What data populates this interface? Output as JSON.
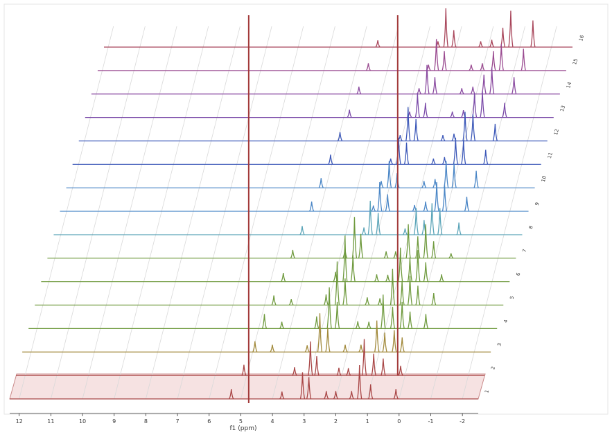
{
  "chart_data": {
    "type": "line",
    "title": "",
    "xlabel": "f1 (ppm)",
    "ylabel": "",
    "x_axis_reversed": true,
    "xlim": [
      12.3,
      -2.5
    ],
    "x_ticks": [
      "12",
      "11",
      "10",
      "9",
      "8",
      "7",
      "6",
      "5",
      "4",
      "3",
      "2",
      "1",
      "0",
      "-1",
      "-2"
    ],
    "x_tick_values": [
      12,
      11,
      10,
      9,
      8,
      7,
      6,
      5,
      4,
      3,
      2,
      1,
      0,
      -1,
      -2
    ],
    "grid": true,
    "legend": "none",
    "perspective": "stacked-3d",
    "reference_line_ppm": 4.75,
    "highlighted_trace": "1",
    "series": [
      {
        "name": "1",
        "color": "#a84545",
        "peaks": [
          {
            "ppm": 5.3,
            "height": 0.2
          },
          {
            "ppm": 3.7,
            "height": 0.15
          },
          {
            "ppm": 3.05,
            "height": 0.55
          },
          {
            "ppm": 2.85,
            "height": 0.45
          },
          {
            "ppm": 2.3,
            "height": 0.16
          },
          {
            "ppm": 2.0,
            "height": 0.16
          },
          {
            "ppm": 1.5,
            "height": 0.16
          },
          {
            "ppm": 1.25,
            "height": 0.7
          },
          {
            "ppm": 0.9,
            "height": 0.3
          },
          {
            "ppm": 0.1,
            "height": 0.2
          }
        ]
      },
      {
        "name": "2",
        "color": "#a84545",
        "peaks": [
          {
            "ppm": 5.1,
            "height": 0.22
          },
          {
            "ppm": 3.5,
            "height": 0.17
          },
          {
            "ppm": 3.0,
            "height": 0.7
          },
          {
            "ppm": 2.8,
            "height": 0.4
          },
          {
            "ppm": 2.1,
            "height": 0.16
          },
          {
            "ppm": 1.8,
            "height": 0.15
          },
          {
            "ppm": 1.3,
            "height": 0.75
          },
          {
            "ppm": 1.0,
            "height": 0.45
          },
          {
            "ppm": 0.7,
            "height": 0.35
          },
          {
            "ppm": 0.15,
            "height": 0.2
          }
        ]
      },
      {
        "name": "3",
        "color": "#a28a3c",
        "peaks": [
          {
            "ppm": 4.95,
            "height": 0.22
          },
          {
            "ppm": 4.4,
            "height": 0.15
          },
          {
            "ppm": 3.3,
            "height": 0.14
          },
          {
            "ppm": 2.9,
            "height": 0.8
          },
          {
            "ppm": 2.65,
            "height": 0.5
          },
          {
            "ppm": 2.1,
            "height": 0.15
          },
          {
            "ppm": 1.6,
            "height": 0.15
          },
          {
            "ppm": 1.1,
            "height": 0.65
          },
          {
            "ppm": 0.85,
            "height": 0.4
          },
          {
            "ppm": 0.55,
            "height": 0.45
          },
          {
            "ppm": 0.3,
            "height": 0.3
          }
        ]
      },
      {
        "name": "4",
        "color": "#6f9a3e",
        "peaks": [
          {
            "ppm": 4.85,
            "height": 0.3
          },
          {
            "ppm": 4.3,
            "height": 0.14
          },
          {
            "ppm": 3.2,
            "height": 0.25
          },
          {
            "ppm": 2.8,
            "height": 0.85
          },
          {
            "ppm": 2.55,
            "height": 0.55
          },
          {
            "ppm": 1.9,
            "height": 0.15
          },
          {
            "ppm": 1.55,
            "height": 0.14
          },
          {
            "ppm": 1.1,
            "height": 0.7
          },
          {
            "ppm": 0.8,
            "height": 0.45
          },
          {
            "ppm": 0.5,
            "height": 0.55
          },
          {
            "ppm": 0.25,
            "height": 0.35
          },
          {
            "ppm": -0.25,
            "height": 0.3
          }
        ]
      },
      {
        "name": "5",
        "color": "#6f9a3e",
        "peaks": [
          {
            "ppm": 4.75,
            "height": 0.2
          },
          {
            "ppm": 4.2,
            "height": 0.12
          },
          {
            "ppm": 3.1,
            "height": 0.22
          },
          {
            "ppm": 2.75,
            "height": 0.9
          },
          {
            "ppm": 2.5,
            "height": 0.55
          },
          {
            "ppm": 1.8,
            "height": 0.16
          },
          {
            "ppm": 1.4,
            "height": 0.14
          },
          {
            "ppm": 1.0,
            "height": 0.75
          },
          {
            "ppm": 0.7,
            "height": 0.5
          },
          {
            "ppm": 0.45,
            "height": 0.6
          },
          {
            "ppm": 0.2,
            "height": 0.4
          },
          {
            "ppm": -0.3,
            "height": 0.25
          }
        ]
      },
      {
        "name": "6",
        "color": "#6f9a3e",
        "peaks": [
          {
            "ppm": 4.65,
            "height": 0.18
          },
          {
            "ppm": 3.0,
            "height": 0.2
          },
          {
            "ppm": 2.7,
            "height": 0.95
          },
          {
            "ppm": 2.45,
            "height": 0.55
          },
          {
            "ppm": 1.7,
            "height": 0.15
          },
          {
            "ppm": 1.35,
            "height": 0.14
          },
          {
            "ppm": 0.95,
            "height": 0.7
          },
          {
            "ppm": 0.65,
            "height": 0.5
          },
          {
            "ppm": 0.4,
            "height": 0.65
          },
          {
            "ppm": 0.15,
            "height": 0.4
          },
          {
            "ppm": -0.35,
            "height": 0.15
          }
        ]
      },
      {
        "name": "7",
        "color": "#6f9a3e",
        "peaks": [
          {
            "ppm": 4.55,
            "height": 0.17
          },
          {
            "ppm": 2.9,
            "height": 0.2
          },
          {
            "ppm": 2.6,
            "height": 0.85
          },
          {
            "ppm": 2.4,
            "height": 0.5
          },
          {
            "ppm": 1.6,
            "height": 0.14
          },
          {
            "ppm": 1.3,
            "height": 0.14
          },
          {
            "ppm": 0.9,
            "height": 0.7
          },
          {
            "ppm": 0.6,
            "height": 0.45
          },
          {
            "ppm": 0.35,
            "height": 0.7
          },
          {
            "ppm": 0.1,
            "height": 0.35
          },
          {
            "ppm": -0.45,
            "height": 0.1
          }
        ]
      },
      {
        "name": "8",
        "color": "#5aa4b8",
        "peaks": [
          {
            "ppm": 4.45,
            "height": 0.18
          },
          {
            "ppm": 2.5,
            "height": 0.15
          },
          {
            "ppm": 2.3,
            "height": 0.7
          },
          {
            "ppm": 2.05,
            "height": 0.45
          },
          {
            "ppm": 1.2,
            "height": 0.13
          },
          {
            "ppm": 0.85,
            "height": 0.55
          },
          {
            "ppm": 0.6,
            "height": 0.3
          },
          {
            "ppm": 0.35,
            "height": 0.65
          },
          {
            "ppm": 0.1,
            "height": 0.55
          },
          {
            "ppm": -0.5,
            "height": 0.25
          }
        ]
      },
      {
        "name": "9",
        "color": "#4a86c6",
        "peaks": [
          {
            "ppm": 4.35,
            "height": 0.2
          },
          {
            "ppm": 2.4,
            "height": 0.12
          },
          {
            "ppm": 2.2,
            "height": 0.6
          },
          {
            "ppm": 1.95,
            "height": 0.35
          },
          {
            "ppm": 1.1,
            "height": 0.13
          },
          {
            "ppm": 0.75,
            "height": 0.2
          },
          {
            "ppm": 0.4,
            "height": 0.6
          },
          {
            "ppm": 0.15,
            "height": 0.55
          },
          {
            "ppm": -0.55,
            "height": 0.3
          }
        ]
      },
      {
        "name": "10",
        "color": "#4a86c6",
        "peaks": [
          {
            "ppm": 4.25,
            "height": 0.2
          },
          {
            "ppm": 2.35,
            "height": 0.14
          },
          {
            "ppm": 2.1,
            "height": 0.55
          },
          {
            "ppm": 1.85,
            "height": 0.3
          },
          {
            "ppm": 1.0,
            "height": 0.14
          },
          {
            "ppm": 0.65,
            "height": 0.18
          },
          {
            "ppm": 0.3,
            "height": 0.55
          },
          {
            "ppm": 0.05,
            "height": 0.5
          },
          {
            "ppm": -0.65,
            "height": 0.35
          }
        ]
      },
      {
        "name": "11",
        "color": "#3c58b8",
        "peaks": [
          {
            "ppm": 4.15,
            "height": 0.2
          },
          {
            "ppm": 2.25,
            "height": 0.12
          },
          {
            "ppm": 2.0,
            "height": 0.55
          },
          {
            "ppm": 1.75,
            "height": 0.45
          },
          {
            "ppm": 0.9,
            "height": 0.12
          },
          {
            "ppm": 0.55,
            "height": 0.15
          },
          {
            "ppm": 0.2,
            "height": 0.55
          },
          {
            "ppm": -0.05,
            "height": 0.5
          },
          {
            "ppm": -0.75,
            "height": 0.3
          }
        ]
      },
      {
        "name": "12",
        "color": "#3c58b8",
        "peaks": [
          {
            "ppm": 4.05,
            "height": 0.18
          },
          {
            "ppm": 2.15,
            "height": 0.12
          },
          {
            "ppm": 1.9,
            "height": 0.7
          },
          {
            "ppm": 1.65,
            "height": 0.45
          },
          {
            "ppm": 0.8,
            "height": 0.12
          },
          {
            "ppm": 0.45,
            "height": 0.15
          },
          {
            "ppm": 0.1,
            "height": 0.6
          },
          {
            "ppm": -0.15,
            "height": 0.55
          },
          {
            "ppm": -0.85,
            "height": 0.35
          }
        ]
      },
      {
        "name": "13",
        "color": "#7a4aa8",
        "peaks": [
          {
            "ppm": 3.95,
            "height": 0.16
          },
          {
            "ppm": 2.05,
            "height": 0.12
          },
          {
            "ppm": 1.8,
            "height": 0.5
          },
          {
            "ppm": 1.55,
            "height": 0.3
          },
          {
            "ppm": 0.7,
            "height": 0.12
          },
          {
            "ppm": 0.35,
            "height": 0.15
          },
          {
            "ppm": 0.0,
            "height": 0.5
          },
          {
            "ppm": -0.25,
            "height": 0.55
          },
          {
            "ppm": -0.95,
            "height": 0.3
          }
        ]
      },
      {
        "name": "14",
        "color": "#8a4aa0",
        "peaks": [
          {
            "ppm": 3.85,
            "height": 0.15
          },
          {
            "ppm": 1.95,
            "height": 0.12
          },
          {
            "ppm": 1.7,
            "height": 0.6
          },
          {
            "ppm": 1.45,
            "height": 0.35
          },
          {
            "ppm": 0.6,
            "height": 0.12
          },
          {
            "ppm": 0.25,
            "height": 0.15
          },
          {
            "ppm": -0.1,
            "height": 0.4
          },
          {
            "ppm": -0.35,
            "height": 0.55
          },
          {
            "ppm": -1.05,
            "height": 0.35
          }
        ]
      },
      {
        "name": "15",
        "color": "#9a4a90",
        "peaks": [
          {
            "ppm": 3.75,
            "height": 0.15
          },
          {
            "ppm": 1.85,
            "height": 0.12
          },
          {
            "ppm": 1.6,
            "height": 0.65
          },
          {
            "ppm": 1.35,
            "height": 0.4
          },
          {
            "ppm": 0.5,
            "height": 0.12
          },
          {
            "ppm": 0.15,
            "height": 0.15
          },
          {
            "ppm": -0.2,
            "height": 0.4
          },
          {
            "ppm": -0.45,
            "height": 0.55
          },
          {
            "ppm": -1.15,
            "height": 0.45
          }
        ]
      },
      {
        "name": "16",
        "color": "#a8455a",
        "peaks": [
          {
            "ppm": 3.65,
            "height": 0.14
          },
          {
            "ppm": 1.75,
            "height": 0.12
          },
          {
            "ppm": 1.5,
            "height": 0.8
          },
          {
            "ppm": 1.25,
            "height": 0.35
          },
          {
            "ppm": 0.4,
            "height": 0.12
          },
          {
            "ppm": 0.05,
            "height": 0.15
          },
          {
            "ppm": -0.3,
            "height": 0.4
          },
          {
            "ppm": -0.55,
            "height": 0.75
          },
          {
            "ppm": -1.25,
            "height": 0.55
          }
        ]
      }
    ]
  }
}
